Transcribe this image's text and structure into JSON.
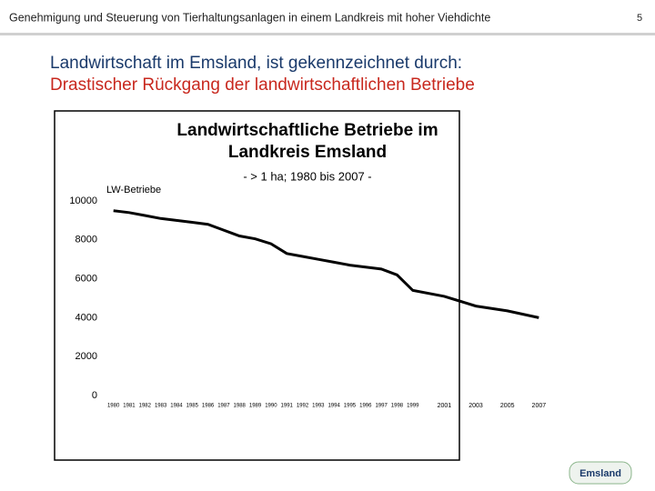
{
  "header": "Genehmigung und Steuerung von Tierhaltungsanlagen in einem Landkreis mit hoher Viehdichte",
  "page_number": "5",
  "heading": "Landwirtschaft im Emsland, ist gekennzeichnet durch:",
  "subheading": "Drastischer Rückgang der landwirtschaftlichen Betriebe",
  "logo": "Emsland",
  "chart_data": {
    "type": "line",
    "title": [
      "Landwirtschaftliche Betriebe im",
      "Landkreis Emsland"
    ],
    "subtitle": "- > 1 ha; 1980 bis 2007 -",
    "y_label": "LW-Betriebe",
    "x": [
      1980,
      1981,
      1982,
      1983,
      1984,
      1985,
      1986,
      1987,
      1988,
      1989,
      1990,
      1991,
      1992,
      1993,
      1994,
      1995,
      1996,
      1997,
      1998,
      1999,
      2001,
      2003,
      2005,
      2007
    ],
    "values": [
      9500,
      9400,
      9250,
      9100,
      9000,
      8900,
      8800,
      8500,
      8200,
      8050,
      7800,
      7300,
      7150,
      7000,
      6850,
      6700,
      6600,
      6500,
      6200,
      5400,
      5100,
      4600,
      4350,
      4000
    ],
    "color": "#000000",
    "xlim": [
      1979.5,
      2007.5
    ],
    "ylim": [
      0,
      10000
    ],
    "yticks": [
      0,
      2000,
      4000,
      6000,
      8000,
      10000
    ]
  }
}
